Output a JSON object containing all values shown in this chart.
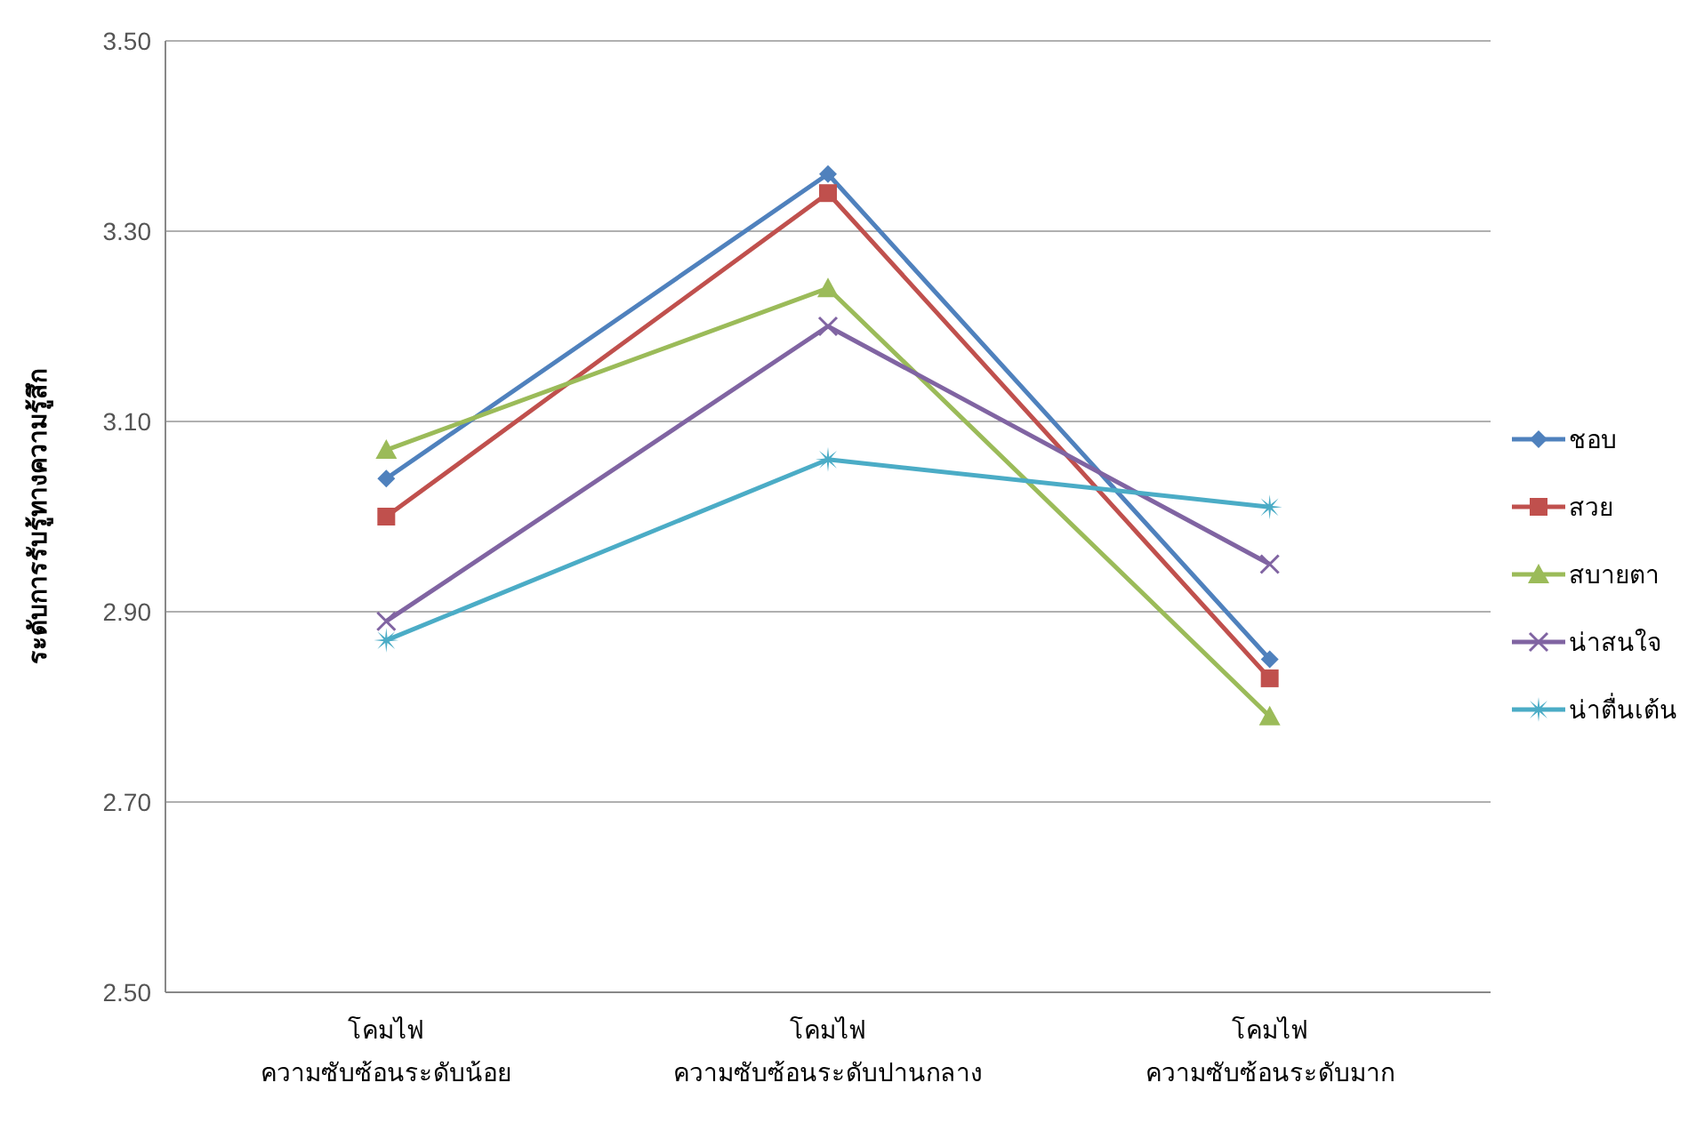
{
  "chart_data": {
    "type": "line",
    "ylabel": "ระดับการรับรู้ทางความรู้สึก",
    "categories": [
      "โคมไฟ\nความซับซ้อนระดับน้อย",
      "โคมไฟ\nความซับซ้อนระดับปานกลาง",
      "โคมไฟ\nความซับซ้อนระดับมาก"
    ],
    "series": [
      {
        "name": "ชอบ",
        "color": "#4f81bd",
        "marker": "diamond",
        "values": [
          3.04,
          3.36,
          2.85
        ]
      },
      {
        "name": "สวย",
        "color": "#c0504d",
        "marker": "square",
        "values": [
          3.0,
          3.34,
          2.83
        ]
      },
      {
        "name": "สบายตา",
        "color": "#9bbb59",
        "marker": "triangle",
        "values": [
          3.07,
          3.24,
          2.79
        ]
      },
      {
        "name": "น่าสนใจ",
        "color": "#8064a2",
        "marker": "cross",
        "values": [
          2.89,
          3.2,
          2.95
        ]
      },
      {
        "name": "น่าตื่นเต้น",
        "color": "#4bacc6",
        "marker": "star",
        "values": [
          2.87,
          3.06,
          3.01
        ]
      }
    ],
    "ylim": [
      2.5,
      3.5
    ],
    "yticks": [
      {
        "value": 2.5,
        "label": "2.50"
      },
      {
        "value": 2.7,
        "label": "2.70"
      },
      {
        "value": 2.9,
        "label": "2.90"
      },
      {
        "value": 3.1,
        "label": "3.10"
      },
      {
        "value": 3.3,
        "label": "3.30"
      },
      {
        "value": 3.5,
        "label": "3.50"
      }
    ],
    "grid": "y",
    "legend": "right",
    "line_style": "solid"
  }
}
